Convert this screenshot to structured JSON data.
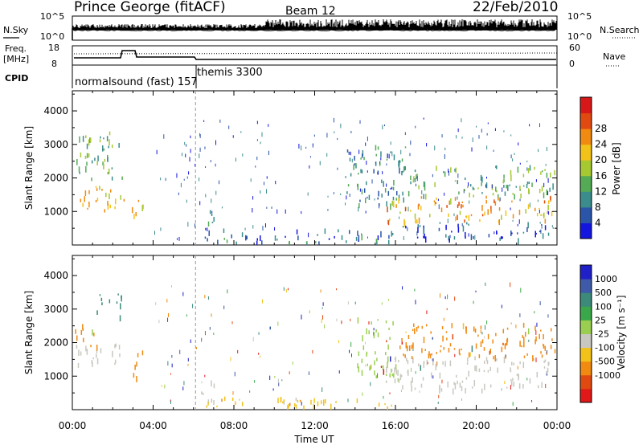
{
  "header": {
    "station": "Prince George (fitACF)",
    "beam": "Beam 12",
    "date": "22/Feb/2010"
  },
  "top_panels": {
    "nsky_label": "N.Sky",
    "nsearch_label": "N.Search",
    "freq_label": "Freq.",
    "freq_unit": "[MHz]",
    "nave_label": "Nave",
    "cpid_label": "CPID",
    "nsky_ticks": [
      "10^5",
      "10^0"
    ],
    "nsearch_ticks": [
      "10^5",
      "10^0"
    ],
    "freq_ticks": [
      "18",
      "8"
    ],
    "nave_ticks": [
      "60",
      "0"
    ],
    "cpid_segments": [
      {
        "label": "normalsound (fast) 157",
        "start_h": 0.0,
        "end_h": 6.1
      },
      {
        "label": "themis 3300",
        "start_h": 6.1,
        "end_h": 24.0
      }
    ]
  },
  "chart_data": [
    {
      "type": "heatmap",
      "title": "Power",
      "xlabel": "Time UT",
      "ylabel": "Slant Range [km]",
      "xlim": [
        0,
        24
      ],
      "ylim": [
        0,
        4600
      ],
      "x_ticks": [
        "00:00",
        "04:00",
        "08:00",
        "12:00",
        "16:00",
        "20:00",
        "00:00"
      ],
      "y_ticks": [
        1000,
        2000,
        3000,
        4000
      ],
      "colorbar_label": "Power [dB]",
      "colorbar_ticks": [
        4,
        8,
        12,
        16,
        20,
        24,
        28
      ],
      "colorbar_colors": [
        "#1515e0",
        "#2a55a8",
        "#3b8c8c",
        "#55aa55",
        "#a6c830",
        "#f2c21a",
        "#f08a10",
        "#e04a10",
        "#d81818"
      ],
      "features": [
        {
          "t_start": 0.1,
          "t_end": 2.6,
          "r_start": 1000,
          "r_end": 1800,
          "level": 22
        },
        {
          "t_start": 0.1,
          "t_end": 2.5,
          "r_start": 2000,
          "r_end": 3400,
          "level": 14
        },
        {
          "t_start": 2.9,
          "t_end": 3.6,
          "r_start": 900,
          "r_end": 1600,
          "level": 24
        },
        {
          "t_start": 6.4,
          "t_end": 7.0,
          "r_start": 300,
          "r_end": 1100,
          "level": 12
        },
        {
          "t_start": 6.5,
          "t_end": 16.0,
          "r_start": 100,
          "r_end": 500,
          "level": 8
        },
        {
          "t_start": 13.5,
          "t_end": 16.5,
          "r_start": 1200,
          "r_end": 3000,
          "level": 10
        },
        {
          "t_start": 15.5,
          "t_end": 23.9,
          "r_start": 700,
          "r_end": 1500,
          "level": 24
        },
        {
          "t_start": 16.0,
          "t_end": 23.9,
          "r_start": 1500,
          "r_end": 2400,
          "level": 14
        },
        {
          "t_start": 16.0,
          "t_end": 23.9,
          "r_start": 200,
          "r_end": 700,
          "level": 6
        }
      ]
    },
    {
      "type": "heatmap",
      "title": "Velocity",
      "xlabel": "Time UT",
      "ylabel": "Slant Range [km]",
      "xlim": [
        0,
        24
      ],
      "ylim": [
        0,
        4600
      ],
      "x_ticks": [
        "00:00",
        "04:00",
        "08:00",
        "12:00",
        "16:00",
        "20:00",
        "00:00"
      ],
      "y_ticks": [
        1000,
        2000,
        3000,
        4000
      ],
      "colorbar_label": "Velocity [m s⁻¹]",
      "colorbar_ticks": [
        "1000",
        "500",
        "100",
        "25",
        "-25",
        "-100",
        "-500",
        "-1000"
      ],
      "colorbar_colors": [
        "#2020c8",
        "#3e5aa8",
        "#3b8a7a",
        "#3aa84a",
        "#9ace50",
        "#c8c8c0",
        "#f2c21a",
        "#f08a10",
        "#e04a10",
        "#e01818"
      ],
      "features": [
        {
          "t_start": 0.1,
          "t_end": 2.4,
          "r_start": 1300,
          "r_end": 2000,
          "class": "gray"
        },
        {
          "t_start": 0.1,
          "t_end": 1.2,
          "r_start": 1900,
          "r_end": 2600,
          "class": "orange"
        },
        {
          "t_start": 1.2,
          "t_end": 2.5,
          "r_start": 2800,
          "r_end": 3500,
          "class": "green"
        },
        {
          "t_start": 3.0,
          "t_end": 3.6,
          "r_start": 1000,
          "r_end": 1800,
          "class": "orange"
        },
        {
          "t_start": 6.3,
          "t_end": 7.0,
          "r_start": 100,
          "r_end": 900,
          "class": "gray"
        },
        {
          "t_start": 6.5,
          "t_end": 16.0,
          "r_start": 100,
          "r_end": 400,
          "class": "yellow"
        },
        {
          "t_start": 14.0,
          "t_end": 16.0,
          "r_start": 1000,
          "r_end": 2800,
          "class": "lightgreen"
        },
        {
          "t_start": 15.5,
          "t_end": 23.9,
          "r_start": 600,
          "r_end": 1600,
          "class": "gray"
        },
        {
          "t_start": 16.0,
          "t_end": 23.9,
          "r_start": 1600,
          "r_end": 2600,
          "class": "orange"
        }
      ]
    }
  ]
}
